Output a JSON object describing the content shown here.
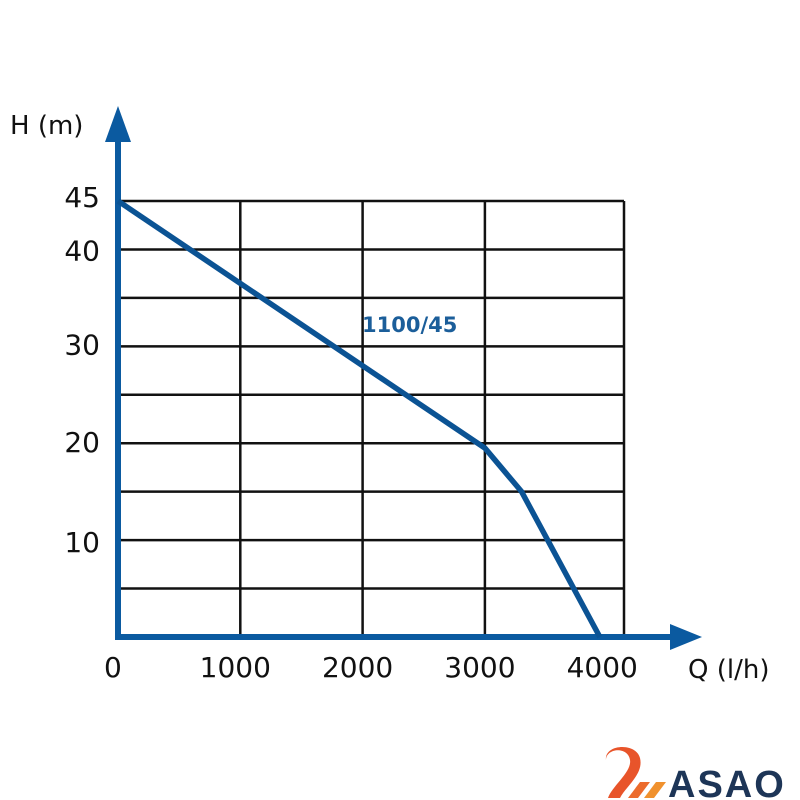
{
  "chart_data": {
    "type": "line",
    "title": "",
    "xlabel": "Q (l/h)",
    "ylabel": "H (m)",
    "xlim": [
      0,
      4000
    ],
    "ylim": [
      0,
      45
    ],
    "grid": true,
    "x_ticks": [
      0,
      1000,
      2000,
      3000,
      4000
    ],
    "x_tick_labels": [
      "0",
      "1000",
      "2000",
      "3000",
      "4000"
    ],
    "y_ticks": [
      10,
      20,
      30,
      40,
      45
    ],
    "y_tick_labels": [
      "10",
      "20",
      "30",
      "40",
      "45"
    ],
    "y_grid": [
      5,
      10,
      15,
      20,
      25,
      30,
      35,
      40,
      45
    ],
    "series": [
      {
        "name": "1100/45",
        "color": "#0b5394",
        "x": [
          0,
          3000,
          3300,
          3940
        ],
        "y": [
          45,
          19.5,
          15,
          0
        ]
      }
    ]
  },
  "logo": {
    "text": "ASAO",
    "colors": [
      "#e8542a",
      "#f0912e",
      "#1d3557"
    ]
  },
  "axis_color": "#0b5aa0"
}
